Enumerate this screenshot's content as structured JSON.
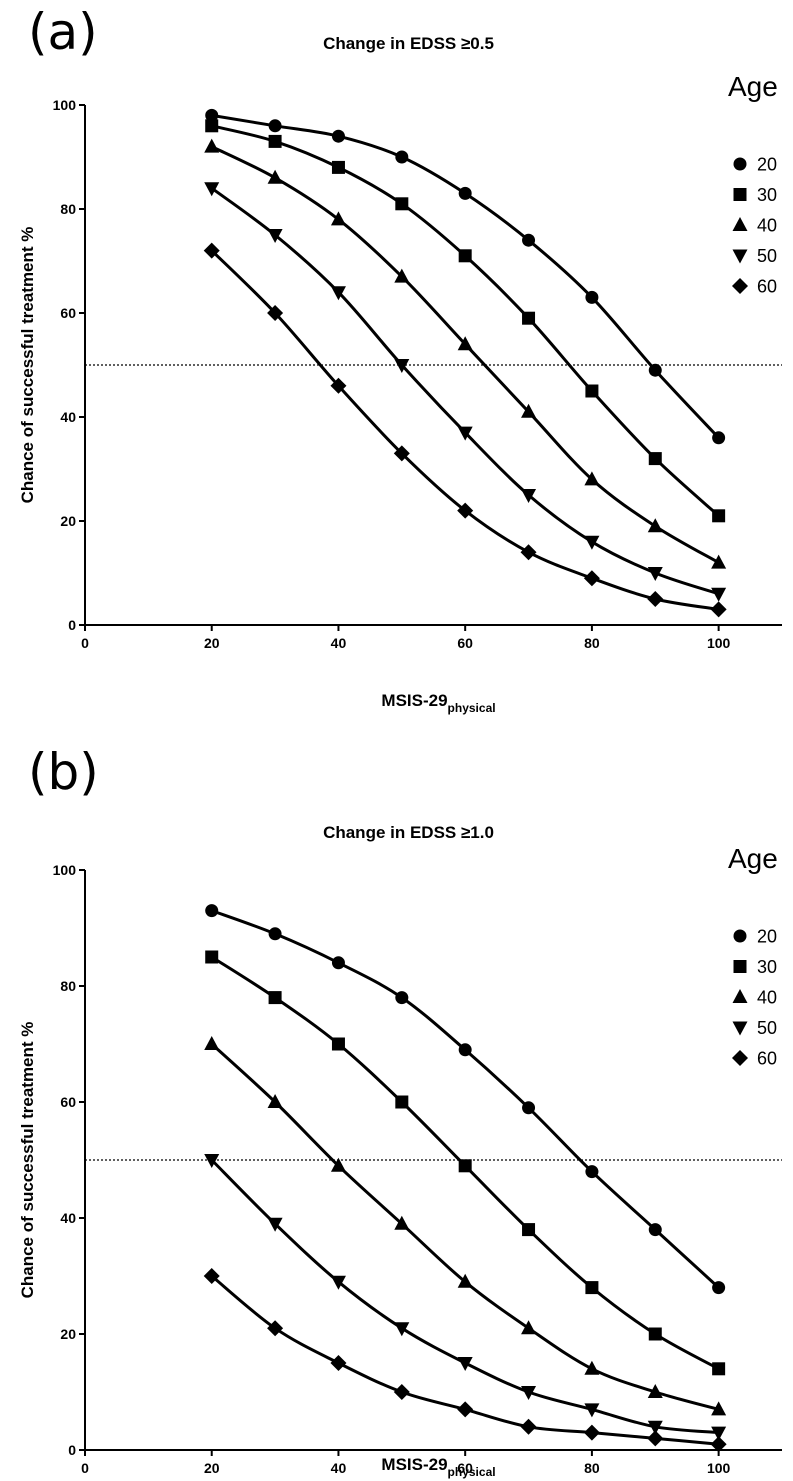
{
  "chart_data": [
    {
      "panel_label": "(a)",
      "type": "line",
      "title": "Change in EDSS ≥0.5",
      "xlabel": "MSIS-29",
      "xlabel_subscript": "physical",
      "ylabel": "Chance of successful treatment %",
      "xlim": [
        0,
        110
      ],
      "ylim": [
        0,
        100
      ],
      "x_ticks": [
        "0",
        "20",
        "40",
        "60",
        "80",
        "100"
      ],
      "y_ticks": [
        "0",
        "20",
        "40",
        "60",
        "80",
        "100"
      ],
      "reference_line": 50,
      "legend_title": "Age",
      "legend_position": "right",
      "grid": false,
      "x": [
        20,
        30,
        40,
        50,
        60,
        70,
        80,
        90,
        100
      ],
      "series": [
        {
          "name": "20",
          "marker": "circle",
          "values": [
            98,
            96,
            94,
            90,
            83,
            74,
            63,
            49,
            36
          ]
        },
        {
          "name": "30",
          "marker": "square",
          "values": [
            96,
            93,
            88,
            81,
            71,
            59,
            45,
            32,
            21
          ]
        },
        {
          "name": "40",
          "marker": "triangle-up",
          "values": [
            92,
            86,
            78,
            67,
            54,
            41,
            28,
            19,
            12
          ]
        },
        {
          "name": "50",
          "marker": "triangle-down",
          "values": [
            84,
            75,
            64,
            50,
            37,
            25,
            16,
            10,
            6
          ]
        },
        {
          "name": "60",
          "marker": "diamond",
          "values": [
            72,
            60,
            46,
            33,
            22,
            14,
            9,
            5,
            3
          ]
        }
      ]
    },
    {
      "panel_label": "(b)",
      "type": "line",
      "title": "Change in EDSS ≥1.0",
      "xlabel": "MSIS-29",
      "xlabel_subscript": "physical",
      "ylabel": "Chance of successful treatment %",
      "xlim": [
        0,
        110
      ],
      "ylim": [
        0,
        100
      ],
      "x_ticks": [
        "0",
        "20",
        "40",
        "60",
        "80",
        "100"
      ],
      "y_ticks": [
        "0",
        "20",
        "40",
        "60",
        "80",
        "100"
      ],
      "reference_line": 50,
      "legend_title": "Age",
      "legend_position": "right",
      "grid": false,
      "x": [
        20,
        30,
        40,
        50,
        60,
        70,
        80,
        90,
        100
      ],
      "series": [
        {
          "name": "20",
          "marker": "circle",
          "values": [
            93,
            89,
            84,
            78,
            69,
            59,
            48,
            38,
            28
          ]
        },
        {
          "name": "30",
          "marker": "square",
          "values": [
            85,
            78,
            70,
            60,
            49,
            38,
            28,
            20,
            14
          ]
        },
        {
          "name": "40",
          "marker": "triangle-up",
          "values": [
            70,
            60,
            49,
            39,
            29,
            21,
            14,
            10,
            7
          ]
        },
        {
          "name": "50",
          "marker": "triangle-down",
          "values": [
            50,
            39,
            29,
            21,
            15,
            10,
            7,
            4,
            3
          ]
        },
        {
          "name": "60",
          "marker": "diamond",
          "values": [
            30,
            21,
            15,
            10,
            7,
            4,
            3,
            2,
            1
          ]
        }
      ]
    }
  ]
}
